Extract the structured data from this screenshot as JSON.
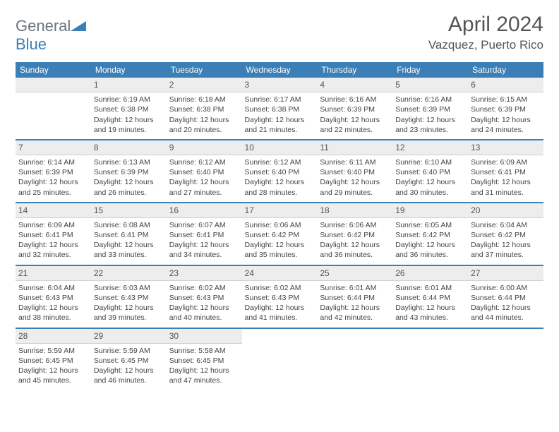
{
  "brand": {
    "text1": "General",
    "text2": "Blue"
  },
  "title": "April 2024",
  "location": "Vazquez, Puerto Rico",
  "colors": {
    "accent": "#3b7fb6",
    "header_text": "#ffffff",
    "daynum_bg": "#ededed",
    "body_text": "#444444",
    "title_text": "#555555"
  },
  "day_headers": [
    "Sunday",
    "Monday",
    "Tuesday",
    "Wednesday",
    "Thursday",
    "Friday",
    "Saturday"
  ],
  "weeks": [
    [
      null,
      {
        "n": "1",
        "sr": "6:19 AM",
        "ss": "6:38 PM",
        "dl": "12 hours and 19 minutes."
      },
      {
        "n": "2",
        "sr": "6:18 AM",
        "ss": "6:38 PM",
        "dl": "12 hours and 20 minutes."
      },
      {
        "n": "3",
        "sr": "6:17 AM",
        "ss": "6:38 PM",
        "dl": "12 hours and 21 minutes."
      },
      {
        "n": "4",
        "sr": "6:16 AM",
        "ss": "6:39 PM",
        "dl": "12 hours and 22 minutes."
      },
      {
        "n": "5",
        "sr": "6:16 AM",
        "ss": "6:39 PM",
        "dl": "12 hours and 23 minutes."
      },
      {
        "n": "6",
        "sr": "6:15 AM",
        "ss": "6:39 PM",
        "dl": "12 hours and 24 minutes."
      }
    ],
    [
      {
        "n": "7",
        "sr": "6:14 AM",
        "ss": "6:39 PM",
        "dl": "12 hours and 25 minutes."
      },
      {
        "n": "8",
        "sr": "6:13 AM",
        "ss": "6:39 PM",
        "dl": "12 hours and 26 minutes."
      },
      {
        "n": "9",
        "sr": "6:12 AM",
        "ss": "6:40 PM",
        "dl": "12 hours and 27 minutes."
      },
      {
        "n": "10",
        "sr": "6:12 AM",
        "ss": "6:40 PM",
        "dl": "12 hours and 28 minutes."
      },
      {
        "n": "11",
        "sr": "6:11 AM",
        "ss": "6:40 PM",
        "dl": "12 hours and 29 minutes."
      },
      {
        "n": "12",
        "sr": "6:10 AM",
        "ss": "6:40 PM",
        "dl": "12 hours and 30 minutes."
      },
      {
        "n": "13",
        "sr": "6:09 AM",
        "ss": "6:41 PM",
        "dl": "12 hours and 31 minutes."
      }
    ],
    [
      {
        "n": "14",
        "sr": "6:09 AM",
        "ss": "6:41 PM",
        "dl": "12 hours and 32 minutes."
      },
      {
        "n": "15",
        "sr": "6:08 AM",
        "ss": "6:41 PM",
        "dl": "12 hours and 33 minutes."
      },
      {
        "n": "16",
        "sr": "6:07 AM",
        "ss": "6:41 PM",
        "dl": "12 hours and 34 minutes."
      },
      {
        "n": "17",
        "sr": "6:06 AM",
        "ss": "6:42 PM",
        "dl": "12 hours and 35 minutes."
      },
      {
        "n": "18",
        "sr": "6:06 AM",
        "ss": "6:42 PM",
        "dl": "12 hours and 36 minutes."
      },
      {
        "n": "19",
        "sr": "6:05 AM",
        "ss": "6:42 PM",
        "dl": "12 hours and 36 minutes."
      },
      {
        "n": "20",
        "sr": "6:04 AM",
        "ss": "6:42 PM",
        "dl": "12 hours and 37 minutes."
      }
    ],
    [
      {
        "n": "21",
        "sr": "6:04 AM",
        "ss": "6:43 PM",
        "dl": "12 hours and 38 minutes."
      },
      {
        "n": "22",
        "sr": "6:03 AM",
        "ss": "6:43 PM",
        "dl": "12 hours and 39 minutes."
      },
      {
        "n": "23",
        "sr": "6:02 AM",
        "ss": "6:43 PM",
        "dl": "12 hours and 40 minutes."
      },
      {
        "n": "24",
        "sr": "6:02 AM",
        "ss": "6:43 PM",
        "dl": "12 hours and 41 minutes."
      },
      {
        "n": "25",
        "sr": "6:01 AM",
        "ss": "6:44 PM",
        "dl": "12 hours and 42 minutes."
      },
      {
        "n": "26",
        "sr": "6:01 AM",
        "ss": "6:44 PM",
        "dl": "12 hours and 43 minutes."
      },
      {
        "n": "27",
        "sr": "6:00 AM",
        "ss": "6:44 PM",
        "dl": "12 hours and 44 minutes."
      }
    ],
    [
      {
        "n": "28",
        "sr": "5:59 AM",
        "ss": "6:45 PM",
        "dl": "12 hours and 45 minutes."
      },
      {
        "n": "29",
        "sr": "5:59 AM",
        "ss": "6:45 PM",
        "dl": "12 hours and 46 minutes."
      },
      {
        "n": "30",
        "sr": "5:58 AM",
        "ss": "6:45 PM",
        "dl": "12 hours and 47 minutes."
      },
      null,
      null,
      null,
      null
    ]
  ],
  "labels": {
    "sunrise": "Sunrise:",
    "sunset": "Sunset:",
    "daylight": "Daylight:"
  }
}
